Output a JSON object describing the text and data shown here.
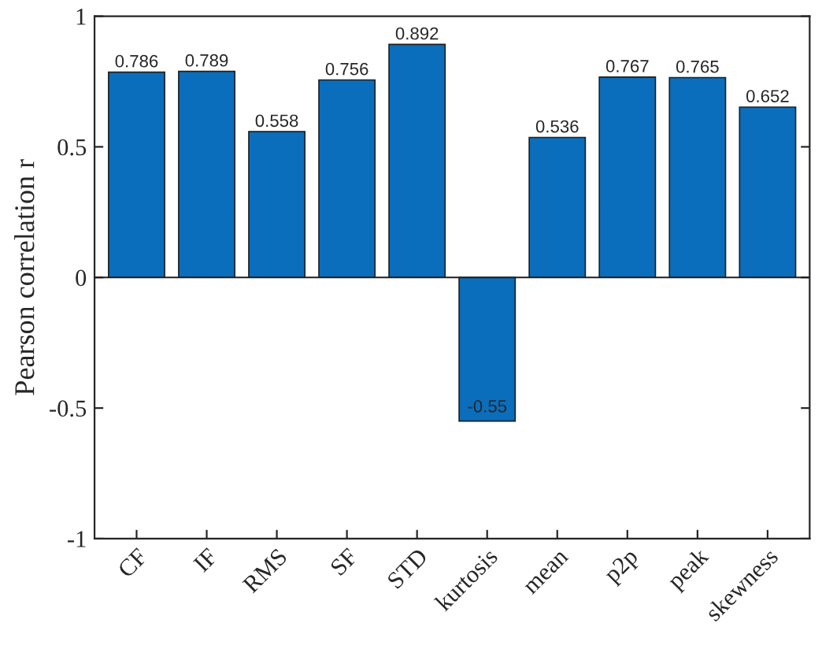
{
  "chart_data": {
    "type": "bar",
    "ylabel": "Pearson correlation r",
    "categories": [
      "CF",
      "IF",
      "RMS",
      "SF",
      "STD",
      "kurtosis",
      "mean",
      "p2p",
      "peak",
      "skewness"
    ],
    "values": [
      0.786,
      0.789,
      0.558,
      0.756,
      0.892,
      -0.55,
      0.536,
      0.767,
      0.765,
      0.652
    ],
    "color": "#0a6ebd",
    "ylim": [
      -1,
      1
    ],
    "yticks": [
      {
        "value": -1,
        "label": "-1"
      },
      {
        "value": -0.5,
        "label": "-0.5"
      },
      0,
      0.5,
      1
    ],
    "data_labels": true
  }
}
